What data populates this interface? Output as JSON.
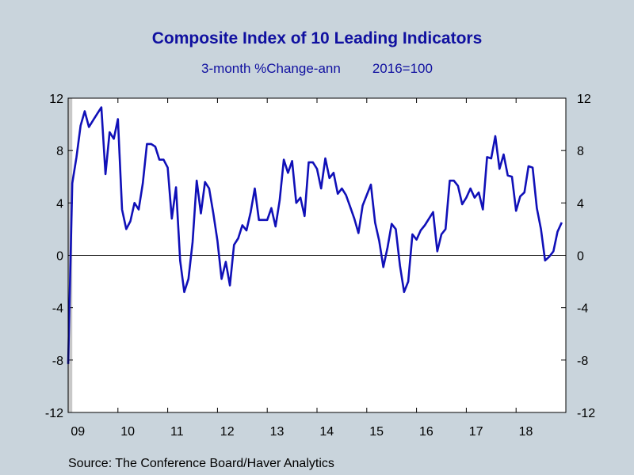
{
  "title": "Composite Index of 10 Leading Indicators",
  "subtitle_left": "3-month %Change-ann",
  "subtitle_right": "2016=100",
  "source": "Source:  The Conference Board/Haver Analytics",
  "colors": {
    "background": "#c9d4dc",
    "plot_bg": "#ffffff",
    "line": "#1010b8",
    "title": "#1010a0",
    "recession_shade": "#c8c8c8"
  },
  "chart_data": {
    "type": "line",
    "title": "Composite Index of 10 Leading Indicators",
    "subtitle": "3-month %Change-ann    2016=100",
    "xlabel": "",
    "ylabel": "",
    "ylim": [
      -12,
      12
    ],
    "xlim": [
      2009.0,
      2019.0
    ],
    "yticks": [
      -12,
      -8,
      -4,
      0,
      4,
      8,
      12
    ],
    "ytick_labels": [
      "-12",
      "-8",
      "-4",
      "0",
      "4",
      "8",
      "12"
    ],
    "xtick_labels": [
      "09",
      "10",
      "11",
      "12",
      "13",
      "14",
      "15",
      "16",
      "17",
      "18"
    ],
    "xtick_positions": [
      2009,
      2010,
      2011,
      2012,
      2013,
      2014,
      2015,
      2016,
      2017,
      2018
    ],
    "zero_line": true,
    "grid": false,
    "legend": "none",
    "shaded_period": [
      2009.0,
      2009.083
    ],
    "series": [
      {
        "values": [
          [
            2009.0,
            -8.3
          ],
          [
            2009.083,
            5.5
          ],
          [
            2009.167,
            7.5
          ],
          [
            2009.25,
            9.9
          ],
          [
            2009.333,
            11.0
          ],
          [
            2009.417,
            9.8
          ],
          [
            2009.5,
            10.3
          ],
          [
            2009.583,
            10.8
          ],
          [
            2009.667,
            11.3
          ],
          [
            2009.75,
            6.2
          ],
          [
            2009.833,
            9.4
          ],
          [
            2009.917,
            8.9
          ],
          [
            2010.0,
            10.4
          ],
          [
            2010.083,
            3.5
          ],
          [
            2010.167,
            2.0
          ],
          [
            2010.25,
            2.6
          ],
          [
            2010.333,
            4.0
          ],
          [
            2010.417,
            3.5
          ],
          [
            2010.5,
            5.5
          ],
          [
            2010.583,
            8.5
          ],
          [
            2010.667,
            8.5
          ],
          [
            2010.75,
            8.3
          ],
          [
            2010.833,
            7.3
          ],
          [
            2010.917,
            7.3
          ],
          [
            2011.0,
            6.7
          ],
          [
            2011.083,
            2.8
          ],
          [
            2011.167,
            5.2
          ],
          [
            2011.25,
            -0.4
          ],
          [
            2011.333,
            -2.8
          ],
          [
            2011.417,
            -1.8
          ],
          [
            2011.5,
            1.0
          ],
          [
            2011.583,
            5.7
          ],
          [
            2011.667,
            3.2
          ],
          [
            2011.75,
            5.6
          ],
          [
            2011.833,
            5.1
          ],
          [
            2011.917,
            3.2
          ],
          [
            2012.0,
            1.1
          ],
          [
            2012.083,
            -1.8
          ],
          [
            2012.167,
            -0.5
          ],
          [
            2012.25,
            -2.3
          ],
          [
            2012.333,
            0.8
          ],
          [
            2012.417,
            1.3
          ],
          [
            2012.5,
            2.3
          ],
          [
            2012.583,
            1.9
          ],
          [
            2012.667,
            3.3
          ],
          [
            2012.75,
            5.1
          ],
          [
            2012.833,
            2.7
          ],
          [
            2012.917,
            2.7
          ],
          [
            2013.0,
            2.7
          ],
          [
            2013.083,
            3.6
          ],
          [
            2013.167,
            2.2
          ],
          [
            2013.25,
            4.2
          ],
          [
            2013.333,
            7.3
          ],
          [
            2013.417,
            6.3
          ],
          [
            2013.5,
            7.2
          ],
          [
            2013.583,
            4.0
          ],
          [
            2013.667,
            4.4
          ],
          [
            2013.75,
            3.0
          ],
          [
            2013.833,
            7.1
          ],
          [
            2013.917,
            7.1
          ],
          [
            2014.0,
            6.6
          ],
          [
            2014.083,
            5.1
          ],
          [
            2014.167,
            7.4
          ],
          [
            2014.25,
            5.9
          ],
          [
            2014.333,
            6.3
          ],
          [
            2014.417,
            4.7
          ],
          [
            2014.5,
            5.1
          ],
          [
            2014.583,
            4.6
          ],
          [
            2014.667,
            3.7
          ],
          [
            2014.75,
            2.8
          ],
          [
            2014.833,
            1.7
          ],
          [
            2014.917,
            3.8
          ],
          [
            2015.0,
            4.6
          ],
          [
            2015.083,
            5.4
          ],
          [
            2015.167,
            2.5
          ],
          [
            2015.25,
            1.1
          ],
          [
            2015.333,
            -0.9
          ],
          [
            2015.417,
            0.6
          ],
          [
            2015.5,
            2.4
          ],
          [
            2015.583,
            2.0
          ],
          [
            2015.667,
            -0.8
          ],
          [
            2015.75,
            -2.8
          ],
          [
            2015.833,
            -2.0
          ],
          [
            2015.917,
            1.6
          ],
          [
            2016.0,
            1.2
          ],
          [
            2016.083,
            1.9
          ],
          [
            2016.167,
            2.3
          ],
          [
            2016.25,
            2.8
          ],
          [
            2016.333,
            3.3
          ],
          [
            2016.417,
            0.3
          ],
          [
            2016.5,
            1.6
          ],
          [
            2016.583,
            2.0
          ],
          [
            2016.667,
            5.7
          ],
          [
            2016.75,
            5.7
          ],
          [
            2016.833,
            5.3
          ],
          [
            2016.917,
            3.9
          ],
          [
            2017.0,
            4.4
          ],
          [
            2017.083,
            5.1
          ],
          [
            2017.167,
            4.4
          ],
          [
            2017.25,
            4.8
          ],
          [
            2017.333,
            3.5
          ],
          [
            2017.417,
            7.5
          ],
          [
            2017.5,
            7.4
          ],
          [
            2017.583,
            9.1
          ],
          [
            2017.667,
            6.6
          ],
          [
            2017.75,
            7.7
          ],
          [
            2017.833,
            6.1
          ],
          [
            2017.917,
            6.0
          ],
          [
            2018.0,
            3.4
          ],
          [
            2018.083,
            4.5
          ],
          [
            2018.167,
            4.8
          ],
          [
            2018.25,
            6.8
          ],
          [
            2018.333,
            6.7
          ],
          [
            2018.417,
            3.6
          ],
          [
            2018.5,
            2.0
          ],
          [
            2018.583,
            -0.4
          ],
          [
            2018.667,
            -0.1
          ],
          [
            2018.75,
            0.3
          ],
          [
            2018.833,
            1.8
          ],
          [
            2018.917,
            2.5
          ]
        ]
      }
    ]
  }
}
